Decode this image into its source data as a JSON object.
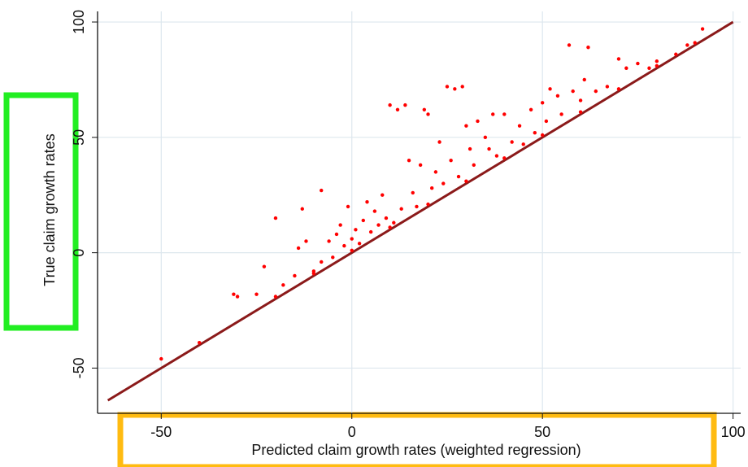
{
  "chart_data": {
    "type": "scatter",
    "xlabel": "Predicted claim growth rates (weighted regression)",
    "ylabel": "True claim growth rates",
    "xlim": [
      -66.7,
      102
    ],
    "ylim": [
      -69.6,
      104.6
    ],
    "xticks": [
      -50,
      0,
      50,
      100
    ],
    "yticks": [
      -50,
      0,
      50,
      100
    ],
    "grid": true,
    "color": "#ff0000",
    "x": [
      -50,
      -31,
      -30,
      -25,
      -23,
      -20,
      -18,
      -15,
      -14,
      -13,
      -12,
      -10,
      -8,
      -8,
      -6,
      -5,
      -4,
      -3,
      -2,
      -1,
      0,
      1,
      2,
      3,
      4,
      5,
      6,
      7,
      8,
      9,
      10,
      11,
      12,
      13,
      14,
      15,
      16,
      17,
      18,
      19,
      20,
      21,
      22,
      23,
      24,
      25,
      26,
      27,
      28,
      29,
      30,
      31,
      32,
      33,
      35,
      36,
      37,
      38,
      40,
      42,
      44,
      45,
      47,
      48,
      50,
      51,
      52,
      54,
      55,
      57,
      58,
      60,
      61,
      62,
      64,
      67,
      70,
      72,
      75,
      78,
      80,
      85,
      88,
      92,
      -40,
      -20,
      0,
      20,
      40,
      60,
      80,
      -10,
      10,
      30,
      50,
      70,
      90
    ],
    "values": [
      -46,
      -18,
      -19,
      -18,
      -6,
      15,
      -14,
      -10,
      2,
      19,
      5,
      -8,
      27,
      -4,
      5,
      -2,
      8,
      12,
      3,
      20,
      6,
      10,
      4,
      14,
      22,
      9,
      18,
      12,
      25,
      15,
      64,
      13,
      62,
      19,
      64,
      40,
      26,
      20,
      38,
      62,
      60,
      28,
      35,
      48,
      30,
      72,
      40,
      71,
      33,
      72,
      55,
      45,
      38,
      57,
      50,
      45,
      60,
      42,
      60,
      48,
      55,
      47,
      62,
      52,
      65,
      57,
      71,
      68,
      60,
      90,
      70,
      66,
      75,
      89,
      70,
      72,
      84,
      80,
      82,
      80,
      83,
      86,
      90,
      97,
      -39,
      -19,
      1,
      21,
      41,
      61,
      81,
      -9,
      11,
      31,
      51,
      71,
      91
    ],
    "reference_line": {
      "x": [
        -64,
        100
      ],
      "values": [
        -64,
        100
      ],
      "color": "#8b1a1a"
    }
  }
}
